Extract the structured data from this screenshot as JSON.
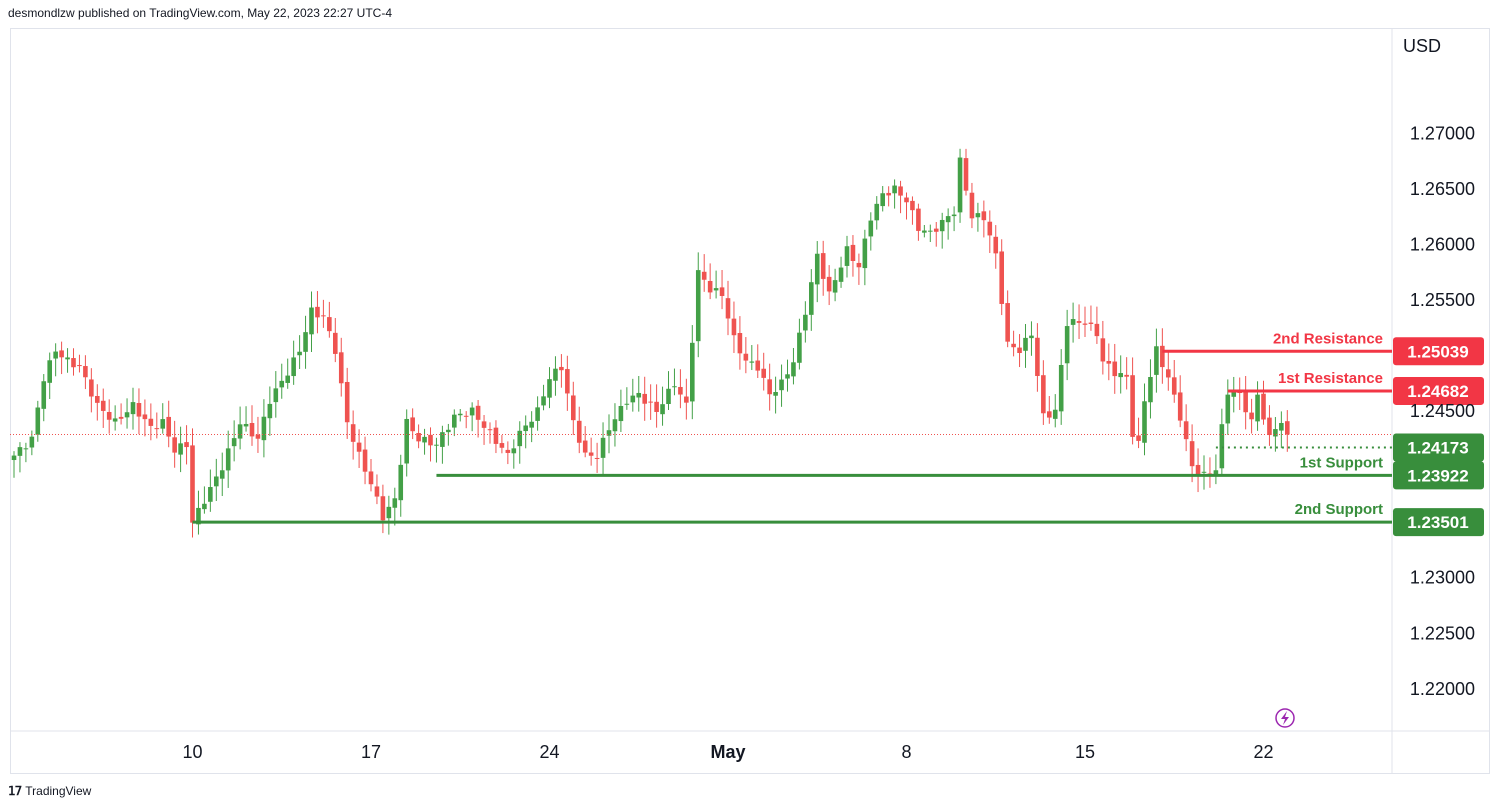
{
  "header": {
    "publisher_line": "desmondlzw published on TradingView.com, May 22, 2023 22:27 UTC-4"
  },
  "footer": {
    "brand": "TradingView",
    "logo_icon": "tradingview-logo-icon"
  },
  "colors": {
    "up": "#43a047",
    "down": "#ef5350",
    "resistance": "#f23645",
    "support": "#388e3c",
    "grid_border": "#e0e3eb",
    "current_price_line": "#ef5350",
    "flash_icon": "#9c27b0"
  },
  "chart_data": {
    "type": "candlestick",
    "currency_label": "USD",
    "y_ticks": [
      "1.27000",
      "1.26500",
      "1.26000",
      "1.25500",
      "1.24500",
      "1.23000",
      "1.22500",
      "1.22000"
    ],
    "y_tick_values": [
      1.27,
      1.265,
      1.26,
      1.255,
      1.245,
      1.23,
      1.225,
      1.22
    ],
    "ylim": [
      1.2162,
      1.2795
    ],
    "x_ticks": [
      {
        "label": "10",
        "bar": 30,
        "bold": false
      },
      {
        "label": "17",
        "bar": 60,
        "bold": false
      },
      {
        "label": "24",
        "bar": 90,
        "bold": false
      },
      {
        "label": "May",
        "bar": 120,
        "bold": true
      },
      {
        "label": "8",
        "bar": 150,
        "bold": false
      },
      {
        "label": "15",
        "bar": 180,
        "bold": false
      },
      {
        "label": "22",
        "bar": 210,
        "bold": false
      }
    ],
    "levels": [
      {
        "name": "2nd Resistance",
        "value": 1.25039,
        "tag": "1.25039",
        "type": "resistance",
        "start_bar": 193,
        "style": "solid"
      },
      {
        "name": "1st Resistance",
        "value": 1.24682,
        "tag": "1.24682",
        "type": "resistance",
        "start_bar": 204,
        "style": "solid"
      },
      {
        "name": "1st Support",
        "value": 1.23922,
        "tag": "1.23922",
        "type": "support",
        "start_bar": 71,
        "style": "solid"
      },
      {
        "name": "2nd Support",
        "value": 1.23501,
        "tag": "1.23501",
        "type": "support",
        "start_bar": 30,
        "style": "solid"
      }
    ],
    "current_price": {
      "value": 1.24173,
      "tag": "1.24173",
      "start_bar": 202
    },
    "last_close_line": 1.2429,
    "anchors": [
      [
        0,
        1.241
      ],
      [
        3,
        1.2425
      ],
      [
        5,
        1.248
      ],
      [
        7,
        1.2505
      ],
      [
        9,
        1.2495
      ],
      [
        11,
        1.249
      ],
      [
        14,
        1.2455
      ],
      [
        17,
        1.244
      ],
      [
        20,
        1.2455
      ],
      [
        23,
        1.2435
      ],
      [
        25,
        1.244
      ],
      [
        27,
        1.2415
      ],
      [
        29,
        1.242
      ],
      [
        30,
        1.235
      ],
      [
        32,
        1.237
      ],
      [
        35,
        1.24
      ],
      [
        38,
        1.244
      ],
      [
        41,
        1.2425
      ],
      [
        43,
        1.246
      ],
      [
        46,
        1.2485
      ],
      [
        48,
        1.2505
      ],
      [
        50,
        1.254
      ],
      [
        52,
        1.2535
      ],
      [
        54,
        1.2505
      ],
      [
        56,
        1.244
      ],
      [
        58,
        1.241
      ],
      [
        60,
        1.2385
      ],
      [
        62,
        1.2355
      ],
      [
        64,
        1.237
      ],
      [
        66,
        1.244
      ],
      [
        68,
        1.2425
      ],
      [
        71,
        1.242
      ],
      [
        74,
        1.2445
      ],
      [
        77,
        1.245
      ],
      [
        80,
        1.243
      ],
      [
        83,
        1.241
      ],
      [
        85,
        1.243
      ],
      [
        88,
        1.245
      ],
      [
        90,
        1.248
      ],
      [
        92,
        1.249
      ],
      [
        94,
        1.244
      ],
      [
        96,
        1.241
      ],
      [
        98,
        1.241
      ],
      [
        100,
        1.2435
      ],
      [
        103,
        1.246
      ],
      [
        105,
        1.2465
      ],
      [
        108,
        1.245
      ],
      [
        111,
        1.2475
      ],
      [
        113,
        1.2455
      ],
      [
        115,
        1.2575
      ],
      [
        117,
        1.256
      ],
      [
        119,
        1.2555
      ],
      [
        121,
        1.2515
      ],
      [
        123,
        1.2495
      ],
      [
        125,
        1.249
      ],
      [
        127,
        1.2465
      ],
      [
        129,
        1.2475
      ],
      [
        131,
        1.2495
      ],
      [
        133,
        1.254
      ],
      [
        135,
        1.259
      ],
      [
        137,
        1.2555
      ],
      [
        140,
        1.2595
      ],
      [
        142,
        1.258
      ],
      [
        144,
        1.2625
      ],
      [
        146,
        1.2645
      ],
      [
        148,
        1.265
      ],
      [
        150,
        1.264
      ],
      [
        152,
        1.2615
      ],
      [
        154,
        1.261
      ],
      [
        156,
        1.262
      ],
      [
        158,
        1.263
      ],
      [
        159,
        1.2675
      ],
      [
        161,
        1.2625
      ],
      [
        163,
        1.2625
      ],
      [
        165,
        1.259
      ],
      [
        167,
        1.251
      ],
      [
        169,
        1.2505
      ],
      [
        171,
        1.252
      ],
      [
        173,
        1.2445
      ],
      [
        175,
        1.245
      ],
      [
        177,
        1.253
      ],
      [
        180,
        1.253
      ],
      [
        182,
        1.252
      ],
      [
        183,
        1.2495
      ],
      [
        185,
        1.2485
      ],
      [
        187,
        1.248
      ],
      [
        188,
        1.243
      ],
      [
        189,
        1.242
      ],
      [
        190,
        1.246
      ],
      [
        192,
        1.2505
      ],
      [
        194,
        1.248
      ],
      [
        196,
        1.2445
      ],
      [
        198,
        1.24
      ],
      [
        200,
        1.2392
      ],
      [
        202,
        1.2398
      ],
      [
        203,
        1.2435
      ],
      [
        204,
        1.2468
      ],
      [
        206,
        1.2465
      ],
      [
        208,
        1.244
      ],
      [
        209,
        1.2465
      ],
      [
        211,
        1.2425
      ],
      [
        212,
        1.2436
      ],
      [
        213,
        1.244
      ],
      [
        214,
        1.2429
      ]
    ]
  }
}
